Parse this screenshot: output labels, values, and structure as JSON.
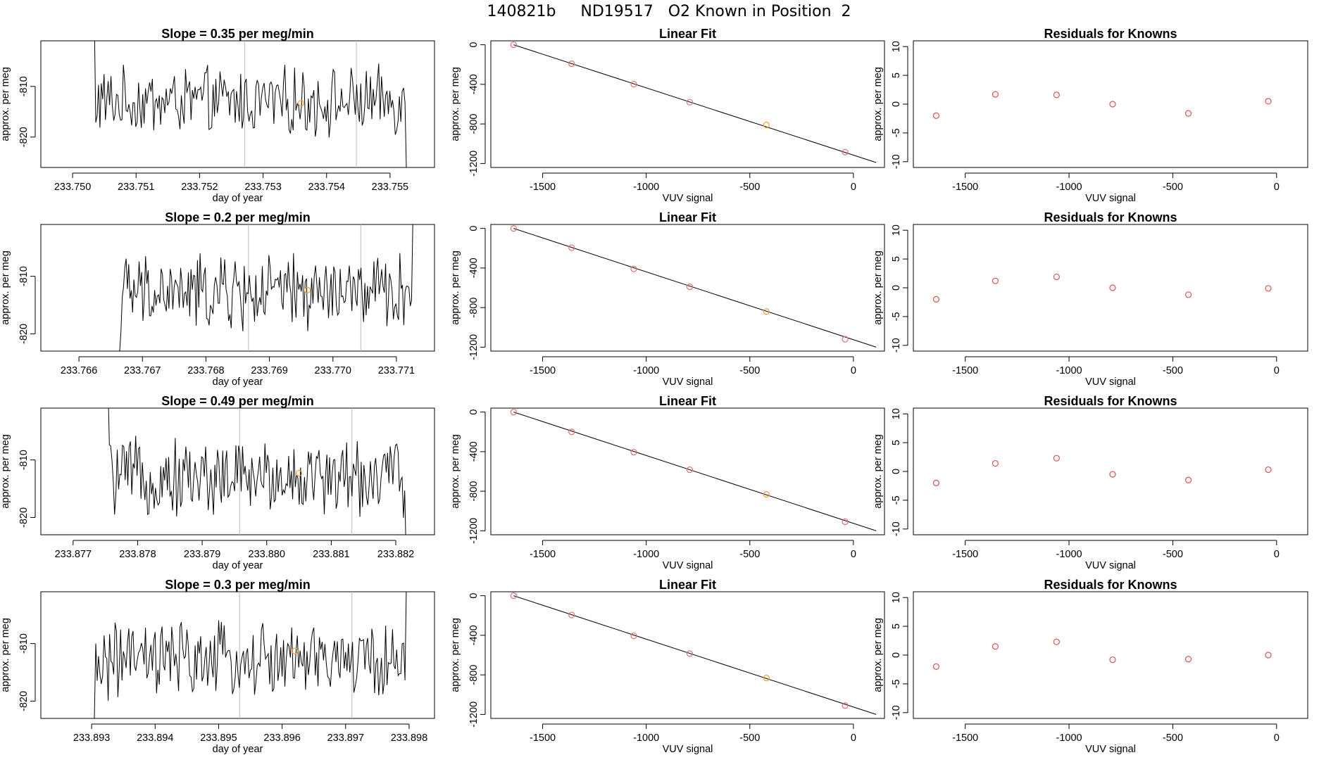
{
  "title": "140821b     ND19517   O2 Known in Position  2",
  "colors": {
    "trace": "#000000",
    "marker": "#f0a030",
    "residual": "#e05050",
    "point": "#e07070",
    "grid": "#bbbbbb",
    "frame": "#000000"
  },
  "chart_data": [
    {
      "row": 1,
      "panels": [
        {
          "type": "line",
          "title": "Slope =  0.35  per meg/min",
          "xlabel": "day of year",
          "ylabel": "approx. per meg",
          "xlim": [
            233.7495,
            233.7557
          ],
          "ylim": [
            -826,
            -801
          ],
          "x_ticks": [
            "233.750",
            "233.751",
            "233.752",
            "233.753",
            "233.754",
            "233.755"
          ],
          "y_ticks": [
            "-810",
            "-820"
          ],
          "vlines": [
            233.75271,
            233.75447
          ],
          "trace_start": 233.7503,
          "trace_end": 233.7553,
          "marker": {
            "x": 233.7536,
            "y": -813.3
          }
        },
        {
          "type": "scatter",
          "title": "Linear Fit",
          "xlabel": "VUV signal",
          "ylabel": "approx. per meg",
          "xlim": [
            -1750,
            150
          ],
          "ylim": [
            -1240,
            40
          ],
          "x_ticks": [
            "-1500",
            "-1000",
            "-500",
            "0"
          ],
          "y_ticks": [
            "0",
            "-400",
            "-800",
            "-1200"
          ],
          "fit": [
            [
              -1640,
              0
            ],
            [
              110,
              -1190
            ]
          ],
          "points": [
            [
              -1640,
              0
            ],
            [
              -1360,
              -192
            ],
            [
              -1060,
              -398
            ],
            [
              -790,
              -580
            ],
            [
              -420,
              -810
            ],
            [
              -40,
              -1085
            ]
          ],
          "highlight_index": 4
        },
        {
          "type": "scatter",
          "title": "Residuals for Knowns",
          "xlabel": "VUV signal",
          "ylabel": "approx. per meg",
          "xlim": [
            -1750,
            150
          ],
          "ylim": [
            -11,
            11
          ],
          "x_ticks": [
            "-1500",
            "-1000",
            "-500",
            "0"
          ],
          "y_ticks": [
            "10",
            "5",
            "0",
            "-5",
            "-10"
          ],
          "points": [
            [
              -1640,
              -2.0
            ],
            [
              -1355,
              1.7
            ],
            [
              -1060,
              1.6
            ],
            [
              -790,
              0.0
            ],
            [
              -425,
              -1.6
            ],
            [
              -40,
              0.5
            ]
          ]
        }
      ]
    },
    {
      "row": 2,
      "panels": [
        {
          "type": "line",
          "title": "Slope =  0.2  per meg/min",
          "xlabel": "day of year",
          "ylabel": "approx. per meg",
          "xlim": [
            233.7654,
            233.7716
          ],
          "ylim": [
            -823,
            -801
          ],
          "x_ticks": [
            "233.766",
            "233.767",
            "233.768",
            "233.769",
            "233.770",
            "233.771"
          ],
          "y_ticks": [
            "-810",
            "-820"
          ],
          "vlines": [
            233.76867,
            233.77044
          ],
          "trace_start": 233.7666,
          "trace_end": 233.7713,
          "marker": {
            "x": 233.7696,
            "y": -812.4
          }
        },
        {
          "type": "scatter",
          "title": "Linear Fit",
          "xlabel": "VUV signal",
          "ylabel": "approx. per meg",
          "xlim": [
            -1750,
            150
          ],
          "ylim": [
            -1240,
            40
          ],
          "x_ticks": [
            "-1500",
            "-1000",
            "-500",
            "0"
          ],
          "y_ticks": [
            "0",
            "-400",
            "-800",
            "-1200"
          ],
          "fit": [
            [
              -1640,
              0
            ],
            [
              110,
              -1200
            ]
          ],
          "points": [
            [
              -1640,
              0
            ],
            [
              -1360,
              -195
            ],
            [
              -1060,
              -410
            ],
            [
              -790,
              -590
            ],
            [
              -420,
              -840
            ],
            [
              -40,
              -1120
            ]
          ],
          "highlight_index": 4
        },
        {
          "type": "scatter",
          "title": "Residuals for Knowns",
          "xlabel": "VUV signal",
          "ylabel": "approx. per meg",
          "xlim": [
            -1750,
            150
          ],
          "ylim": [
            -11,
            11
          ],
          "x_ticks": [
            "-1500",
            "-1000",
            "-500",
            "0"
          ],
          "y_ticks": [
            "10",
            "5",
            "0",
            "-5",
            "-10"
          ],
          "points": [
            [
              -1640,
              -2.0
            ],
            [
              -1355,
              1.2
            ],
            [
              -1060,
              1.9
            ],
            [
              -790,
              0.0
            ],
            [
              -425,
              -1.2
            ],
            [
              -40,
              -0.1
            ]
          ]
        }
      ]
    },
    {
      "row": 3,
      "panels": [
        {
          "type": "line",
          "title": "Slope =  0.49  per meg/min",
          "xlabel": "day of year",
          "ylabel": "approx. per meg",
          "xlim": [
            233.8765,
            233.8826
          ],
          "ylim": [
            -823,
            -801
          ],
          "x_ticks": [
            "233.877",
            "233.878",
            "233.879",
            "233.880",
            "233.881",
            "233.882"
          ],
          "y_ticks": [
            "-810",
            "-820"
          ],
          "vlines": [
            233.87958,
            233.88132
          ],
          "trace_start": 233.8775,
          "trace_end": 233.8822,
          "marker": {
            "x": 233.8805,
            "y": -812.3
          }
        },
        {
          "type": "scatter",
          "title": "Linear Fit",
          "xlabel": "VUV signal",
          "ylabel": "approx. per meg",
          "xlim": [
            -1750,
            150
          ],
          "ylim": [
            -1240,
            40
          ],
          "x_ticks": [
            "-1500",
            "-1000",
            "-500",
            "0"
          ],
          "y_ticks": [
            "0",
            "-400",
            "-800",
            "-1200"
          ],
          "fit": [
            [
              -1640,
              0
            ],
            [
              110,
              -1200
            ]
          ],
          "points": [
            [
              -1640,
              0
            ],
            [
              -1360,
              -200
            ],
            [
              -1060,
              -405
            ],
            [
              -790,
              -583
            ],
            [
              -420,
              -832
            ],
            [
              -40,
              -1108
            ]
          ],
          "highlight_index": 4
        },
        {
          "type": "scatter",
          "title": "Residuals for Knowns",
          "xlabel": "VUV signal",
          "ylabel": "approx. per meg",
          "xlim": [
            -1750,
            150
          ],
          "ylim": [
            -11,
            11
          ],
          "x_ticks": [
            "-1500",
            "-1000",
            "-500",
            "0"
          ],
          "y_ticks": [
            "10",
            "5",
            "0",
            "-5",
            "-10"
          ],
          "points": [
            [
              -1640,
              -2.0
            ],
            [
              -1355,
              1.4
            ],
            [
              -1060,
              2.3
            ],
            [
              -790,
              -0.5
            ],
            [
              -425,
              -1.5
            ],
            [
              -40,
              0.3
            ]
          ]
        }
      ]
    },
    {
      "row": 4,
      "panels": [
        {
          "type": "line",
          "title": "Slope =  0.3  per meg/min",
          "xlabel": "day of year",
          "ylabel": "approx. per meg",
          "xlim": [
            233.8922,
            233.8984
          ],
          "ylim": [
            -823,
            -801
          ],
          "x_ticks": [
            "233.893",
            "233.894",
            "233.895",
            "233.896",
            "233.897",
            "233.898"
          ],
          "y_ticks": [
            "-810",
            "-820"
          ],
          "vlines": [
            233.89533,
            233.8971
          ],
          "trace_start": 233.893,
          "trace_end": 233.898,
          "marker": {
            "x": 233.8962,
            "y": -811.3
          }
        },
        {
          "type": "scatter",
          "title": "Linear Fit",
          "xlabel": "VUV signal",
          "ylabel": "approx. per meg",
          "xlim": [
            -1750,
            150
          ],
          "ylim": [
            -1240,
            40
          ],
          "x_ticks": [
            "-1500",
            "-1000",
            "-500",
            "0"
          ],
          "y_ticks": [
            "0",
            "-400",
            "-800",
            "-1200"
          ],
          "fit": [
            [
              -1640,
              0
            ],
            [
              110,
              -1200
            ]
          ],
          "points": [
            [
              -1640,
              0
            ],
            [
              -1360,
              -195
            ],
            [
              -1060,
              -405
            ],
            [
              -790,
              -585
            ],
            [
              -420,
              -832
            ],
            [
              -40,
              -1110
            ]
          ],
          "highlight_index": 4
        },
        {
          "type": "scatter",
          "title": "Residuals for Knowns",
          "xlabel": "VUV signal",
          "ylabel": "approx. per meg",
          "xlim": [
            -1750,
            150
          ],
          "ylim": [
            -11,
            11
          ],
          "x_ticks": [
            "-1500",
            "-1000",
            "-500",
            "0"
          ],
          "y_ticks": [
            "10",
            "5",
            "0",
            "-5",
            "-10"
          ],
          "points": [
            [
              -1640,
              -2.0
            ],
            [
              -1355,
              1.5
            ],
            [
              -1060,
              2.3
            ],
            [
              -790,
              -0.8
            ],
            [
              -425,
              -0.7
            ],
            [
              -40,
              0.0
            ]
          ]
        }
      ]
    }
  ]
}
